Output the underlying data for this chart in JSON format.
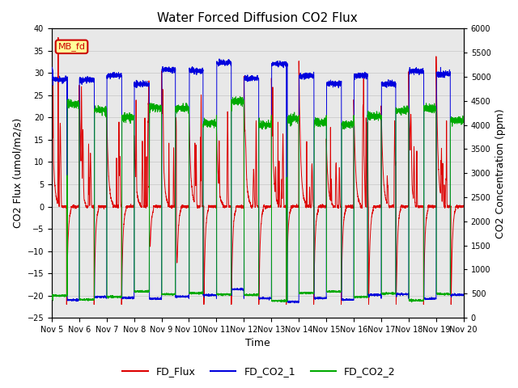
{
  "title": "Water Forced Diffusion CO2 Flux",
  "xlabel": "Time",
  "ylabel_left": "CO2 Flux (umol/m2/s)",
  "ylabel_right": "CO2 Concentration (ppm)",
  "ylim_left": [
    -25,
    40
  ],
  "ylim_right": [
    0,
    6000
  ],
  "yticks_left": [
    -25,
    -20,
    -15,
    -10,
    -5,
    0,
    5,
    10,
    15,
    20,
    25,
    30,
    35,
    40
  ],
  "yticks_right": [
    0,
    500,
    1000,
    1500,
    2000,
    2500,
    3000,
    3500,
    4000,
    4500,
    5000,
    5500,
    6000
  ],
  "xtick_labels": [
    "Nov 5",
    "Nov 6",
    "Nov 7",
    "Nov 8",
    "Nov 9",
    "Nov 10",
    "Nov 11",
    "Nov 12",
    "Nov 13",
    "Nov 14",
    "Nov 15",
    "Nov 16",
    "Nov 17",
    "Nov 18",
    "Nov 19",
    "Nov 20"
  ],
  "annotation_text": "MB_fd",
  "annotation_color": "#cc0000",
  "annotation_bg": "#ffff99",
  "line_colors": {
    "FD_Flux": "#dd0000",
    "FD_CO2_1": "#0000dd",
    "FD_CO2_2": "#00aa00"
  },
  "grid_color": "#d0d0d0",
  "bg_color": "#e8e8e8",
  "n_days": 15,
  "n_per_day": 288
}
